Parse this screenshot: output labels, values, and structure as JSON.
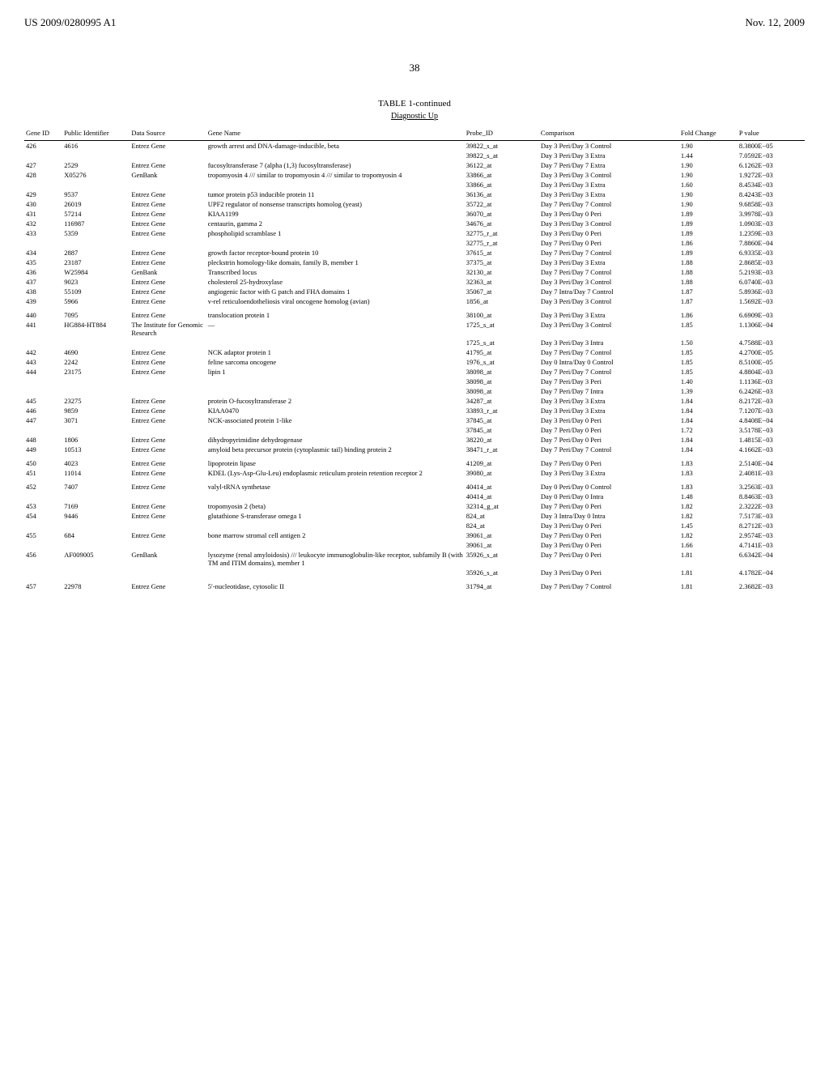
{
  "header": {
    "left": "US 2009/0280995 A1",
    "right": "Nov. 12, 2009"
  },
  "page_number": "38",
  "table_title": "TABLE 1-continued",
  "section_title": "Diagnostic Up",
  "columns": [
    "Gene ID",
    "Public Identifier",
    "Data Source",
    "Gene Name",
    "Probe_ID",
    "Comparison",
    "Fold Change",
    "P value"
  ],
  "rows": [
    {
      "sep": false,
      "gene_id": "426",
      "pub_id": "4616",
      "source": "Entrez Gene",
      "name": "growth arrest and DNA-damage-inducible, beta",
      "probe": "39822_s_at",
      "comp": "Day 3 Peri/Day 3 Control",
      "fold": "1.90",
      "p": "8.3800E−05"
    },
    {
      "sep": false,
      "gene_id": "",
      "pub_id": "",
      "source": "",
      "name": "",
      "probe": "39822_s_at",
      "comp": "Day 3 Peri/Day 3 Extra",
      "fold": "1.44",
      "p": "7.0592E−03"
    },
    {
      "sep": false,
      "gene_id": "427",
      "pub_id": "2529",
      "source": "Entrez Gene",
      "name": "fucosyltransferase 7 (alpha (1,3) fucosyltransferase)",
      "probe": "36122_at",
      "comp": "Day 7 Peri/Day 7 Extra",
      "fold": "1.90",
      "p": "6.1262E−03"
    },
    {
      "sep": false,
      "gene_id": "428",
      "pub_id": "X05276",
      "source": "GenBank",
      "name": "tropomyosin 4 /// similar to tropomyosin 4 /// similar to tropomyosin 4",
      "probe": "33866_at",
      "comp": "Day 3 Peri/Day 3 Control",
      "fold": "1.90",
      "p": "1.9272E−03"
    },
    {
      "sep": false,
      "gene_id": "",
      "pub_id": "",
      "source": "",
      "name": "",
      "probe": "33866_at",
      "comp": "Day 3 Peri/Day 3 Extra",
      "fold": "1.60",
      "p": "8.4534E−03"
    },
    {
      "sep": false,
      "gene_id": "429",
      "pub_id": "9537",
      "source": "Entrez Gene",
      "name": "tumor protein p53 inducible protein 11",
      "probe": "36136_at",
      "comp": "Day 3 Peri/Day 3 Extra",
      "fold": "1.90",
      "p": "8.4243E−03"
    },
    {
      "sep": false,
      "gene_id": "430",
      "pub_id": "26019",
      "source": "Entrez Gene",
      "name": "UPF2 regulator of nonsense transcripts homolog (yeast)",
      "probe": "35722_at",
      "comp": "Day 7 Peri/Day 7 Control",
      "fold": "1.90",
      "p": "9.6858E−03"
    },
    {
      "sep": false,
      "gene_id": "431",
      "pub_id": "57214",
      "source": "Entrez Gene",
      "name": "KIAA1199",
      "probe": "36070_at",
      "comp": "Day 3 Peri/Day 0 Peri",
      "fold": "1.89",
      "p": "3.9978E−03"
    },
    {
      "sep": false,
      "gene_id": "432",
      "pub_id": "116987",
      "source": "Entrez Gene",
      "name": "centaurin, gamma 2",
      "probe": "34676_at",
      "comp": "Day 3 Peri/Day 3 Control",
      "fold": "1.89",
      "p": "1.0903E−03"
    },
    {
      "sep": false,
      "gene_id": "433",
      "pub_id": "5359",
      "source": "Entrez Gene",
      "name": "phospholipid scramblase 1",
      "probe": "32775_r_at",
      "comp": "Day 3 Peri/Day 0 Peri",
      "fold": "1.89",
      "p": "1.2359E−03"
    },
    {
      "sep": false,
      "gene_id": "",
      "pub_id": "",
      "source": "",
      "name": "",
      "probe": "32775_r_at",
      "comp": "Day 7 Peri/Day 0 Peri",
      "fold": "1.86",
      "p": "7.8860E−04"
    },
    {
      "sep": false,
      "gene_id": "434",
      "pub_id": "2887",
      "source": "Entrez Gene",
      "name": "growth factor receptor-bound protein 10",
      "probe": "37615_at",
      "comp": "Day 7 Peri/Day 7 Control",
      "fold": "1.89",
      "p": "6.9335E−03"
    },
    {
      "sep": false,
      "gene_id": "435",
      "pub_id": "23187",
      "source": "Entrez Gene",
      "name": "pleckstrin homology-like domain, family B, member 1",
      "probe": "37375_at",
      "comp": "Day 3 Peri/Day 3 Extra",
      "fold": "1.88",
      "p": "2.8685E−03"
    },
    {
      "sep": false,
      "gene_id": "436",
      "pub_id": "W25984",
      "source": "GenBank",
      "name": "Transcribed locus",
      "probe": "32130_at",
      "comp": "Day 7 Peri/Day 7 Control",
      "fold": "1.88",
      "p": "5.2193E−03"
    },
    {
      "sep": false,
      "gene_id": "437",
      "pub_id": "9023",
      "source": "Entrez Gene",
      "name": "cholesterol 25-hydroxylase",
      "probe": "32363_at",
      "comp": "Day 3 Peri/Day 3 Control",
      "fold": "1.88",
      "p": "6.0740E−03"
    },
    {
      "sep": false,
      "gene_id": "438",
      "pub_id": "55109",
      "source": "Entrez Gene",
      "name": "angiogenic factor with G patch and FHA domains 1",
      "probe": "35067_at",
      "comp": "Day 7 Intra/Day 7 Control",
      "fold": "1.87",
      "p": "5.8936E−03"
    },
    {
      "sep": false,
      "gene_id": "439",
      "pub_id": "5966",
      "source": "Entrez Gene",
      "name": "v-rel reticuloendotheliosis viral oncogene homolog (avian)",
      "probe": "1856_at",
      "comp": "Day 3 Peri/Day 3 Control",
      "fold": "1.87",
      "p": "1.5692E−03"
    },
    {
      "sep": true,
      "gene_id": "440",
      "pub_id": "7095",
      "source": "Entrez Gene",
      "name": "translocation protein 1",
      "probe": "38100_at",
      "comp": "Day 3 Peri/Day 3 Extra",
      "fold": "1.86",
      "p": "6.6909E−03"
    },
    {
      "sep": false,
      "gene_id": "441",
      "pub_id": "HG884-HT884",
      "source": "The Institute for Genomic Research",
      "name": "—",
      "probe": "1725_s_at",
      "comp": "Day 3 Peri/Day 3 Control",
      "fold": "1.85",
      "p": "1.1306E−04"
    },
    {
      "sep": false,
      "gene_id": "",
      "pub_id": "",
      "source": "",
      "name": "",
      "probe": "1725_s_at",
      "comp": "Day 3 Peri/Day 3 Intra",
      "fold": "1.50",
      "p": "4.7588E−03"
    },
    {
      "sep": false,
      "gene_id": "442",
      "pub_id": "4690",
      "source": "Entrez Gene",
      "name": "NCK adaptor protein 1",
      "probe": "41795_at",
      "comp": "Day 7 Peri/Day 7 Control",
      "fold": "1.85",
      "p": "4.2700E−05"
    },
    {
      "sep": false,
      "gene_id": "443",
      "pub_id": "2242",
      "source": "Entrez Gene",
      "name": "feline sarcoma oncogene",
      "probe": "1976_s_at",
      "comp": "Day 0 Intra/Day 0 Control",
      "fold": "1.85",
      "p": "8.5100E−05"
    },
    {
      "sep": false,
      "gene_id": "444",
      "pub_id": "23175",
      "source": "Entrez Gene",
      "name": "lipin 1",
      "probe": "38098_at",
      "comp": "Day 7 Peri/Day 7 Control",
      "fold": "1.85",
      "p": "4.8804E−03"
    },
    {
      "sep": false,
      "gene_id": "",
      "pub_id": "",
      "source": "",
      "name": "",
      "probe": "38098_at",
      "comp": "Day 7 Peri/Day 3 Peri",
      "fold": "1.40",
      "p": "1.1136E−03"
    },
    {
      "sep": false,
      "gene_id": "",
      "pub_id": "",
      "source": "",
      "name": "",
      "probe": "38098_at",
      "comp": "Day 7 Peri/Day 7 Intra",
      "fold": "1.39",
      "p": "6.2426E−03"
    },
    {
      "sep": false,
      "gene_id": "445",
      "pub_id": "23275",
      "source": "Entrez Gene",
      "name": "protein O-fucosyltransferase 2",
      "probe": "34287_at",
      "comp": "Day 3 Peri/Day 3 Extra",
      "fold": "1.84",
      "p": "8.2172E−03"
    },
    {
      "sep": false,
      "gene_id": "446",
      "pub_id": "9859",
      "source": "Entrez Gene",
      "name": "KIAA0470",
      "probe": "33893_r_at",
      "comp": "Day 3 Peri/Day 3 Extra",
      "fold": "1.84",
      "p": "7.1207E−03"
    },
    {
      "sep": false,
      "gene_id": "447",
      "pub_id": "3071",
      "source": "Entrez Gene",
      "name": "NCK-associated protein 1-like",
      "probe": "37845_at",
      "comp": "Day 3 Peri/Day 0 Peri",
      "fold": "1.84",
      "p": "4.8408E−04"
    },
    {
      "sep": false,
      "gene_id": "",
      "pub_id": "",
      "source": "",
      "name": "",
      "probe": "37845_at",
      "comp": "Day 7 Peri/Day 0 Peri",
      "fold": "1.72",
      "p": "3.5178E−03"
    },
    {
      "sep": false,
      "gene_id": "448",
      "pub_id": "1806",
      "source": "Entrez Gene",
      "name": "dihydropyrimidine dehydrogenase",
      "probe": "38220_at",
      "comp": "Day 7 Peri/Day 0 Peri",
      "fold": "1.84",
      "p": "1.4815E−03"
    },
    {
      "sep": false,
      "gene_id": "449",
      "pub_id": "10513",
      "source": "Entrez Gene",
      "name": "amyloid beta precursor protein (cytoplasmic tail) binding protein 2",
      "probe": "38471_r_at",
      "comp": "Day 7 Peri/Day 7 Control",
      "fold": "1.84",
      "p": "4.1662E−03"
    },
    {
      "sep": true,
      "gene_id": "450",
      "pub_id": "4023",
      "source": "Entrez Gene",
      "name": "lipoprotein lipase",
      "probe": "41209_at",
      "comp": "Day 7 Peri/Day 0 Peri",
      "fold": "1.83",
      "p": "2.5140E−04"
    },
    {
      "sep": false,
      "gene_id": "451",
      "pub_id": "11014",
      "source": "Entrez Gene",
      "name": "KDEL (Lys-Asp-Glu-Leu) endoplasmic reticulum protein retention receptor 2",
      "probe": "39080_at",
      "comp": "Day 3 Peri/Day 3 Extra",
      "fold": "1.83",
      "p": "2.4081E−03"
    },
    {
      "sep": true,
      "gene_id": "452",
      "pub_id": "7407",
      "source": "Entrez Gene",
      "name": "valyl-tRNA synthetase",
      "probe": "40414_at",
      "comp": "Day 0 Peri/Day 0 Control",
      "fold": "1.83",
      "p": "3.2563E−03"
    },
    {
      "sep": false,
      "gene_id": "",
      "pub_id": "",
      "source": "",
      "name": "",
      "probe": "40414_at",
      "comp": "Day 0 Peri/Day 0 Intra",
      "fold": "1.48",
      "p": "8.8463E−03"
    },
    {
      "sep": false,
      "gene_id": "453",
      "pub_id": "7169",
      "source": "Entrez Gene",
      "name": "tropomyosin 2 (beta)",
      "probe": "32314_g_at",
      "comp": "Day 7 Peri/Day 0 Peri",
      "fold": "1.82",
      "p": "2.3222E−03"
    },
    {
      "sep": false,
      "gene_id": "454",
      "pub_id": "9446",
      "source": "Entrez Gene",
      "name": "glutathione S-transferase omega 1",
      "probe": "824_at",
      "comp": "Day 3 Intra/Day 0 Intra",
      "fold": "1.82",
      "p": "7.5173E−03"
    },
    {
      "sep": false,
      "gene_id": "",
      "pub_id": "",
      "source": "",
      "name": "",
      "probe": "824_at",
      "comp": "Day 3 Peri/Day 0 Peri",
      "fold": "1.45",
      "p": "8.2712E−03"
    },
    {
      "sep": false,
      "gene_id": "455",
      "pub_id": "684",
      "source": "Entrez Gene",
      "name": "bone marrow stromal cell antigen 2",
      "probe": "39061_at",
      "comp": "Day 7 Peri/Day 0 Peri",
      "fold": "1.82",
      "p": "2.9574E−03"
    },
    {
      "sep": false,
      "gene_id": "",
      "pub_id": "",
      "source": "",
      "name": "",
      "probe": "39061_at",
      "comp": "Day 3 Peri/Day 0 Peri",
      "fold": "1.66",
      "p": "4.7141E−03"
    },
    {
      "sep": false,
      "gene_id": "456",
      "pub_id": "AF009005",
      "source": "GenBank",
      "name": "lysozyme (renal amyloidosis) /// leukocyte immunoglobulin-like receptor, subfamily B (with TM and ITIM domains), member 1",
      "probe": "35926_s_at",
      "comp": "Day 7 Peri/Day 0 Peri",
      "fold": "1.81",
      "p": "6.6342E−04"
    },
    {
      "sep": false,
      "gene_id": "",
      "pub_id": "",
      "source": "",
      "name": "",
      "probe": "35926_s_at",
      "comp": "Day 3 Peri/Day 0 Peri",
      "fold": "1.81",
      "p": "4.1782E−04"
    },
    {
      "sep": true,
      "gene_id": "457",
      "pub_id": "22978",
      "source": "Entrez Gene",
      "name": "5′-nucleotidase, cytosolic II",
      "probe": "31794_at",
      "comp": "Day 7 Peri/Day 7 Control",
      "fold": "1.81",
      "p": "2.3682E−03"
    }
  ]
}
